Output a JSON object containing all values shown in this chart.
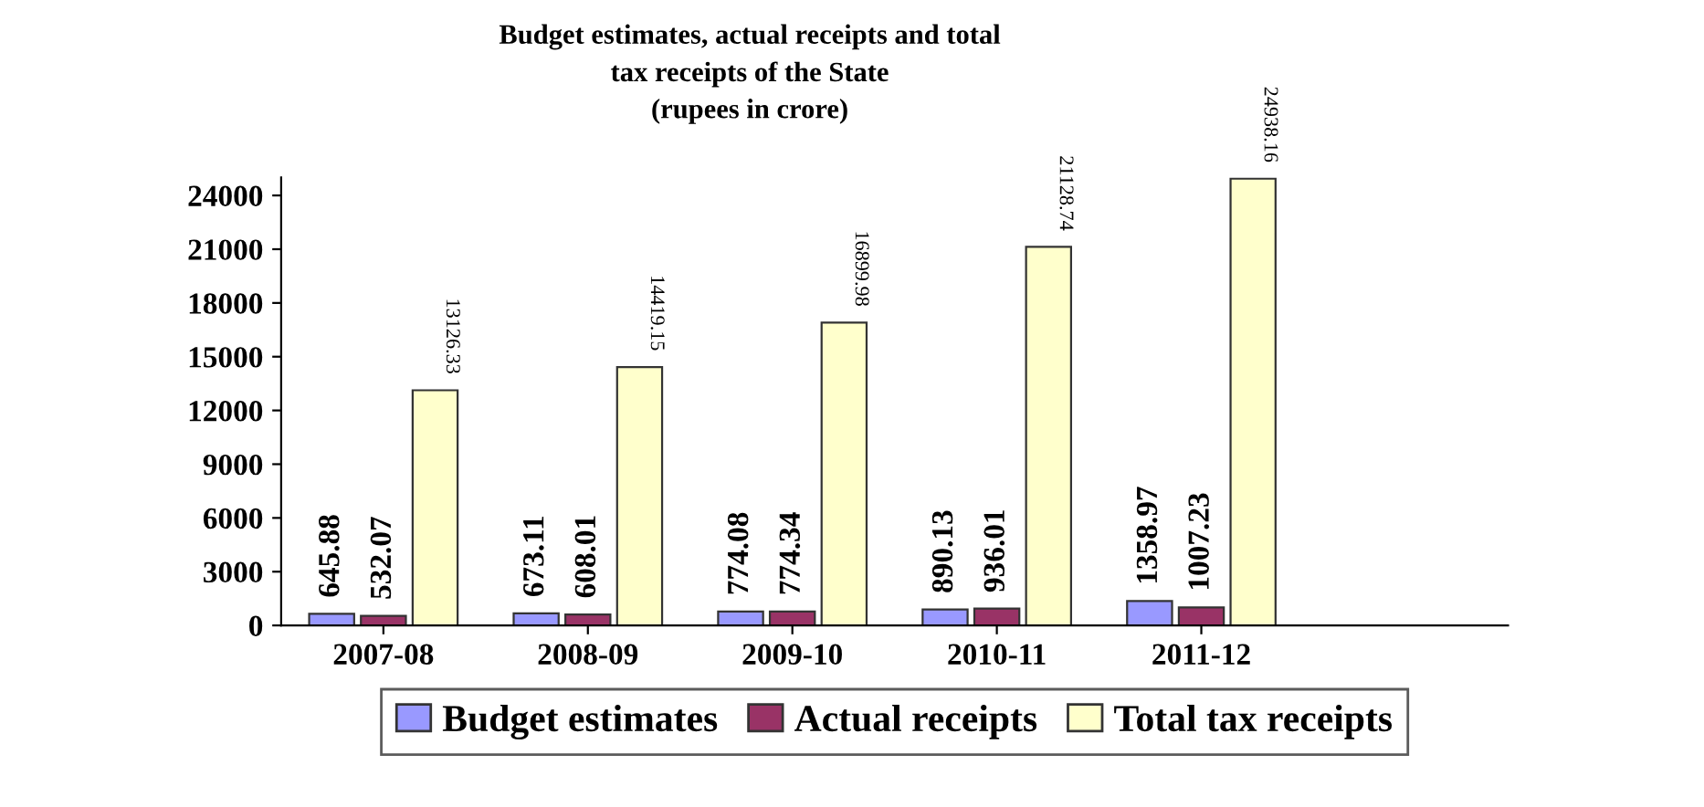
{
  "chart_data": {
    "type": "bar",
    "title": "Budget estimates, actual receipts and total\ntax receipts of the State\n(rupees in crore)",
    "categories": [
      "2007-08",
      "2008-09",
      "2009-10",
      "2010-11",
      "2011-12"
    ],
    "series": [
      {
        "name": "Budget estimates",
        "color": "#9999ff",
        "values": [
          645.88,
          673.11,
          774.08,
          890.13,
          1358.97
        ]
      },
      {
        "name": "Actual receipts",
        "color": "#993366",
        "values": [
          532.07,
          608.01,
          774.34,
          936.01,
          1007.23
        ]
      },
      {
        "name": "Total tax receipts",
        "color": "#ffffcc",
        "values": [
          13126.33,
          14419.15,
          16899.98,
          21128.74,
          24938.16
        ]
      }
    ],
    "ylim": [
      0,
      25000
    ],
    "yticks": [
      0,
      3000,
      6000,
      9000,
      12000,
      15000,
      18000,
      21000,
      24000
    ],
    "data_labels": true,
    "grid": false,
    "legend": "bottom"
  }
}
